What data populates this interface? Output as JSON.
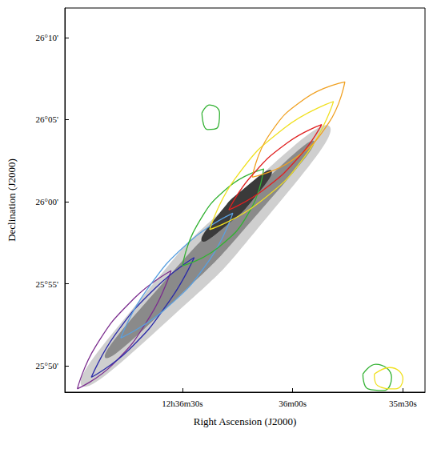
{
  "chart_data": {
    "type": "contour_map",
    "xlabel": "Right Ascension (J2000)",
    "ylabel": "Declination (J2000)",
    "xlim": [
      45422,
      45324
    ],
    "ylim": [
      1548.4,
      1571.8
    ],
    "xticks": [
      {
        "value": 45390,
        "label": "12h36m30s"
      },
      {
        "value": 45360,
        "label": "36m00s"
      },
      {
        "value": 45330,
        "label": "35m30s"
      }
    ],
    "yticks": [
      {
        "value": 1550,
        "label": "25°50'"
      },
      {
        "value": 1555,
        "label": "25°55'"
      },
      {
        "value": 1560,
        "label": "26°00'"
      },
      {
        "value": 1565,
        "label": "26°05'"
      },
      {
        "value": 1570,
        "label": "26°10'"
      }
    ],
    "grid": false,
    "image_levels": [
      {
        "color": "#cfcfcf",
        "points": [
          [
            45417.4,
            1548.8
          ],
          [
            45393.8,
            1552.8
          ],
          [
            45366.8,
            1559.1
          ],
          [
            45350.0,
            1564.6
          ],
          [
            45373.6,
            1560.6
          ],
          [
            45400.5,
            1554.3
          ]
        ]
      },
      {
        "color": "#8a8a8a",
        "points": [
          [
            45411.0,
            1550.5
          ],
          [
            45392.1,
            1554.0
          ],
          [
            45369.4,
            1559.3
          ],
          [
            45354.2,
            1563.7
          ],
          [
            45373.1,
            1560.1
          ],
          [
            45395.9,
            1554.9
          ]
        ]
      },
      {
        "color": "#3a3a3a",
        "points": [
          [
            45384.7,
            1557.6
          ],
          [
            45377.8,
            1558.6
          ],
          [
            45370.2,
            1560.3
          ],
          [
            45365.8,
            1561.9
          ],
          [
            45372.7,
            1560.9
          ],
          [
            45380.3,
            1559.2
          ]
        ]
      }
    ],
    "series": [
      {
        "color": "#7b2d8e",
        "contours": [
          [
            [
              45418.6,
              1548.6
            ],
            [
              45408.9,
              1550.1
            ],
            [
              45398.6,
              1553.1
            ],
            [
              45393.1,
              1555.8
            ],
            [
              45403.2,
              1554.1
            ],
            [
              45413.6,
              1551.2
            ],
            [
              45418.6,
              1548.6
            ]
          ]
        ]
      },
      {
        "color": "#2a2aa8",
        "contours": [
          [
            [
              45414.8,
              1549.3
            ],
            [
              45404.5,
              1551.0
            ],
            [
              45393.4,
              1554.0
            ],
            [
              45386.8,
              1556.6
            ],
            [
              45397.1,
              1554.8
            ],
            [
              45408.3,
              1551.9
            ],
            [
              45414.8,
              1549.3
            ]
          ]
        ]
      },
      {
        "color": "#5aa0e0",
        "contours": [
          [
            [
              45406.8,
              1551.7
            ],
            [
              45395.0,
              1553.4
            ],
            [
              45382.8,
              1556.4
            ],
            [
              45376.3,
              1559.3
            ],
            [
              45387.9,
              1557.6
            ],
            [
              45400.1,
              1554.5
            ],
            [
              45406.8,
              1551.7
            ]
          ]
        ]
      },
      {
        "color": "#33b233",
        "contours": [
          [
            [
              45390.0,
              1556.1
            ],
            [
              45380.3,
              1557.2
            ],
            [
              45371.5,
              1559.5
            ],
            [
              45367.9,
              1562.0
            ],
            [
              45377.4,
              1560.9
            ],
            [
              45386.2,
              1558.5
            ],
            [
              45390.0,
              1556.1
            ]
          ],
          [
            [
              45384.7,
              1565.4
            ],
            [
              45382.6,
              1565.9
            ],
            [
              45379.9,
              1565.4
            ],
            [
              45380.5,
              1564.5
            ],
            [
              45383.2,
              1564.4
            ],
            [
              45384.7,
              1565.4
            ]
          ],
          [
            [
              45340.9,
              1549.5
            ],
            [
              45337.4,
              1550.1
            ],
            [
              45333.1,
              1549.3
            ],
            [
              45335.3,
              1548.5
            ],
            [
              45339.5,
              1548.6
            ],
            [
              45340.9,
              1549.5
            ]
          ]
        ]
      },
      {
        "color": "#f0e020",
        "contours": [
          [
            [
              45382.6,
              1558.3
            ],
            [
              45369.4,
              1559.9
            ],
            [
              45355.9,
              1563.0
            ],
            [
              45348.9,
              1566.1
            ],
            [
              45362.2,
              1564.5
            ],
            [
              45375.7,
              1561.4
            ],
            [
              45382.6,
              1558.3
            ]
          ],
          [
            [
              45337.8,
              1549.5
            ],
            [
              45333.6,
              1549.9
            ],
            [
              45330.0,
              1549.2
            ],
            [
              45332.1,
              1548.6
            ],
            [
              45336.9,
              1548.8
            ],
            [
              45337.8,
              1549.5
            ]
          ]
        ]
      },
      {
        "color": "#f0a020",
        "contours": [
          [
            [
              45371.0,
              1561.5
            ],
            [
              45360.3,
              1562.5
            ],
            [
              45350.2,
              1564.8
            ],
            [
              45345.8,
              1567.3
            ],
            [
              45356.5,
              1566.3
            ],
            [
              45366.6,
              1564.0
            ],
            [
              45371.0,
              1561.5
            ]
          ]
        ]
      },
      {
        "color": "#e02020",
        "contours": [
          [
            [
              45377.4,
              1559.5
            ],
            [
              45368.1,
              1560.7
            ],
            [
              45358.0,
              1562.8
            ],
            [
              45352.1,
              1564.7
            ],
            [
              45361.4,
              1563.6
            ],
            [
              45371.5,
              1561.5
            ],
            [
              45377.4,
              1559.5
            ]
          ]
        ]
      }
    ]
  }
}
